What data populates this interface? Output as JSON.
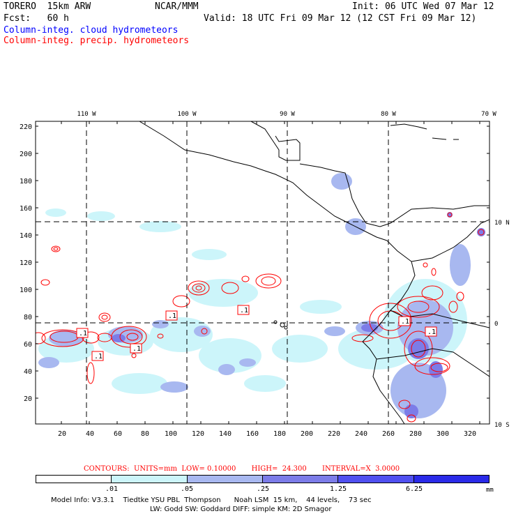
{
  "header": {
    "model_title": "TORERO  15km ARW",
    "org": "NCAR/MMM",
    "init": "Init: 06 UTC Wed 07 Mar 12",
    "fcst": "Fcst:   60 h",
    "valid": "Valid: 18 UTC Fri 09 Mar 12 (12 CST Fri 09 Mar 12)",
    "field_cloud": "Column-integ. cloud hydrometeors",
    "field_precip": "Column-integ. precip. hydrometeors"
  },
  "axes": {
    "x_ticks": [
      "20",
      "40",
      "60",
      "80",
      "100",
      "120",
      "140",
      "160",
      "180",
      "200",
      "220",
      "240",
      "260",
      "280",
      "300",
      "320"
    ],
    "y_ticks": [
      "20",
      "40",
      "60",
      "80",
      "100",
      "120",
      "140",
      "160",
      "180",
      "200",
      "220"
    ],
    "lon_labels": [
      "110 W",
      "100 W",
      "90 W",
      "80 W",
      "70 W"
    ],
    "lat_labels": [
      "10 N",
      "0",
      "10 S"
    ]
  },
  "contour_info": "CONTOURS:  UNITS=mm  LOW= 0.10000       HIGH=  24.300       INTERVAL=X  3.0000",
  "colorbar": {
    "colors": [
      "#ffffff",
      "#ccf5fa",
      "#a8b8f0",
      "#7c7ce8",
      "#5050f0",
      "#2a2ae8"
    ],
    "labels": [
      ".01",
      ".05",
      ".25",
      "1.25",
      "6.25"
    ],
    "unit": "mm"
  },
  "contour_labels": [
    ".1",
    ".1",
    ".1",
    ".1",
    ".1",
    ".1",
    ".1"
  ],
  "model_info": {
    "line1": "Model Info: V3.3.1    Tiedtke YSU PBL  Thompson      Noah LSM  15 km,    44 levels,    73 sec",
    "line2": "LW: Godd SW: Goddard DIFF: simple KM: 2D Smagor"
  },
  "colors": {
    "cloud": "#0000ff",
    "precip": "#ff0000",
    "light_cloud": "#ccf5fa",
    "med_cloud": "#a8b8f0",
    "dark_cloud": "#7c7ce8"
  }
}
